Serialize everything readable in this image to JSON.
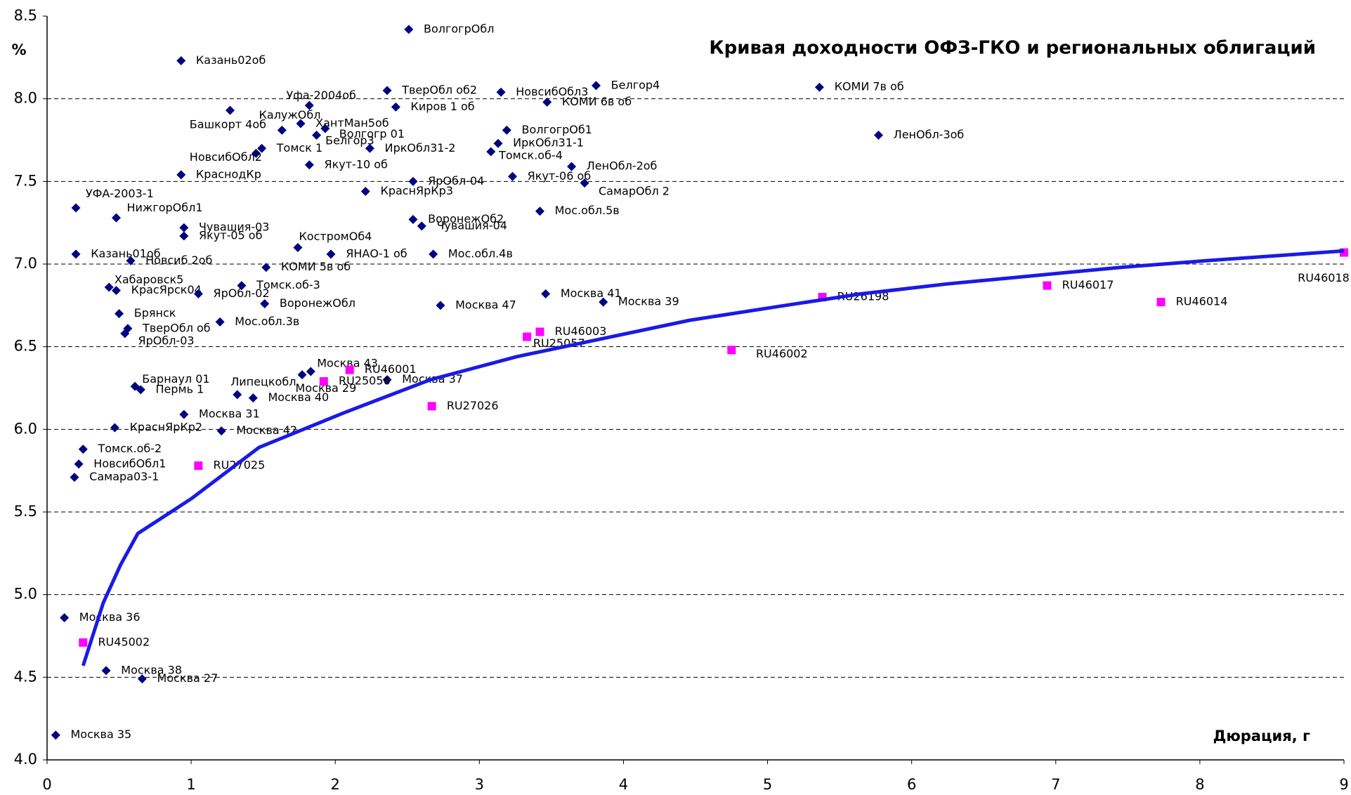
{
  "chart_data": {
    "type": "scatter",
    "title": "Кривая доходности ОФЗ-ГКО и региональных облигаций",
    "ylabel": "%",
    "xlabel": "Дюрация, г",
    "xlim": [
      0,
      9
    ],
    "ylim": [
      4,
      8.5
    ],
    "xticks": [
      0,
      1,
      2,
      3,
      4,
      5,
      6,
      7,
      8,
      9
    ],
    "yticks": [
      {
        "value": 4,
        "label": "4.0"
      },
      4.5,
      {
        "value": 5,
        "label": "5.0"
      },
      5.5,
      {
        "value": 6,
        "label": "6.0"
      },
      6.5,
      {
        "value": 7,
        "label": "7.0"
      },
      7.5,
      {
        "value": 8,
        "label": "8.0"
      },
      8.5
    ],
    "grid": true,
    "series": [
      {
        "color": "#000080",
        "marker": "diamond",
        "x": [
          0.06,
          0.12,
          0.41,
          0.66,
          0.19,
          0.22,
          0.25,
          0.47,
          0.61,
          0.65,
          0.95,
          1.21,
          1.32,
          1.43,
          1.77,
          1.83,
          2.36,
          0.5,
          0.56,
          0.54,
          1.2,
          0.43,
          0.48,
          1.05,
          1.35,
          1.51,
          1.52,
          0.2,
          0.58,
          1.74,
          1.97,
          2.68,
          2.73,
          3.46,
          3.86,
          0.2,
          0.48,
          0.95,
          0.95,
          2.54,
          2.6,
          3.42,
          2.21,
          2.54,
          3.23,
          3.73,
          3.64,
          0.93,
          1.45,
          1.49,
          1.82,
          2.24,
          3.08,
          3.13,
          3.19,
          1.27,
          1.63,
          1.76,
          1.87,
          1.93,
          1.82,
          2.36,
          2.42,
          3.15,
          3.47,
          3.81,
          2.51,
          0.93,
          5.36,
          5.77
        ],
        "values": [
          4.15,
          4.86,
          4.54,
          4.49,
          5.71,
          5.79,
          5.88,
          6.01,
          6.26,
          6.24,
          6.09,
          5.99,
          6.21,
          6.19,
          6.33,
          6.35,
          6.3,
          6.7,
          6.61,
          6.58,
          6.65,
          6.86,
          6.84,
          6.82,
          6.87,
          6.76,
          6.98,
          7.06,
          7.02,
          7.1,
          7.06,
          7.06,
          6.75,
          6.82,
          6.77,
          7.34,
          7.28,
          7.22,
          7.17,
          7.27,
          7.23,
          7.32,
          7.44,
          7.5,
          7.53,
          7.49,
          7.59,
          7.54,
          7.67,
          7.7,
          7.6,
          7.7,
          7.68,
          7.73,
          7.81,
          7.93,
          7.81,
          7.85,
          7.78,
          7.82,
          7.96,
          8.05,
          7.95,
          8.04,
          7.98,
          8.08,
          8.42,
          8.23,
          8.07,
          7.78
        ],
        "labels": [
          "Москва 35",
          "Москва 36",
          "Москва 38",
          "Москва 27",
          "Самара03-1",
          "НовсибОбл1",
          "Томск.об-2",
          "КраснЯрКр2",
          "Барнаул 01",
          "Пермь 1",
          "Москва 31",
          "Москва 42",
          "Липецкобл",
          "Москва 40",
          "Москва 29",
          "Москва 43",
          "Москва 37",
          "Брянск",
          "ТверОбл об",
          "ЯрОбл-03",
          "Мос.обл.3в",
          "Хабаровск5",
          "КрасЯрск04",
          "ЯрОбл-02",
          "Томск.об-3",
          "ВоронежОбл",
          "КОМИ 5в об",
          "Казань01об",
          "Новсиб 2об",
          "КостромОб4",
          "ЯНАО-1 об",
          "Мос.обл.4в",
          "Москва 47",
          "Москва 41",
          "Москва 39",
          "УФА-2003-1",
          "НижгорОбл1",
          "Чувашия-03",
          "Якут-05 об",
          "ВоронежОб2",
          "Чувашия-04",
          "Мос.обл.5в",
          "КраснЯрКр3",
          "ЯрОбл-04",
          "Якут-06 об",
          "СамарОбл 2",
          "ЛенОбл-2об",
          "КраснодКр",
          "НовсибОбл2",
          "Томск 1",
          "Якут-10 об",
          "ИркОбл31-2",
          "Томск.об-4",
          "ИркОбл31-1",
          "ВолгогрОб1",
          "Башкорт 4об",
          "КалужОбл",
          "ХантМан5об",
          "Белгор3",
          "Волгогр 01",
          "Уфа-2004об",
          "ТверОбл об2",
          "Киров 1 об",
          "НовсибОбл3",
          "КОМИ 6в об",
          "Белгор4",
          "ВолгогрОбл",
          "Казань02об",
          "КОМИ 7в об",
          "ЛенОбл-3об"
        ]
      },
      {
        "color": "#ff00ff",
        "marker": "square",
        "x": [
          0.25,
          1.05,
          1.92,
          2.1,
          2.67,
          3.33,
          3.42,
          4.75,
          5.38,
          6.94,
          7.73,
          9
        ],
        "values": [
          4.71,
          5.78,
          6.29,
          6.36,
          6.14,
          6.56,
          6.59,
          6.48,
          6.8,
          6.87,
          6.77,
          7.07
        ],
        "labels": [
          "RU45002",
          "RU27025",
          "RU25056",
          "RU46001",
          "RU27026",
          "RU25057",
          "RU46003",
          "RU46002",
          "RU26198",
          "RU46017",
          "RU46014",
          "RU46018"
        ]
      },
      {
        "color": "#1a1ae6",
        "marker": "line",
        "x": [
          0.25,
          0.39,
          0.51,
          0.63,
          1.0,
          1.47,
          2.06,
          2.66,
          3.26,
          3.86,
          4.46,
          5.05,
          5.65,
          6.25,
          6.85,
          7.45,
          8.04,
          9
        ],
        "values": [
          4.57,
          4.95,
          5.18,
          5.37,
          5.58,
          5.89,
          6.1,
          6.3,
          6.44,
          6.55,
          6.66,
          6.74,
          6.82,
          6.88,
          6.93,
          6.98,
          7.02,
          7.08
        ]
      }
    ]
  }
}
